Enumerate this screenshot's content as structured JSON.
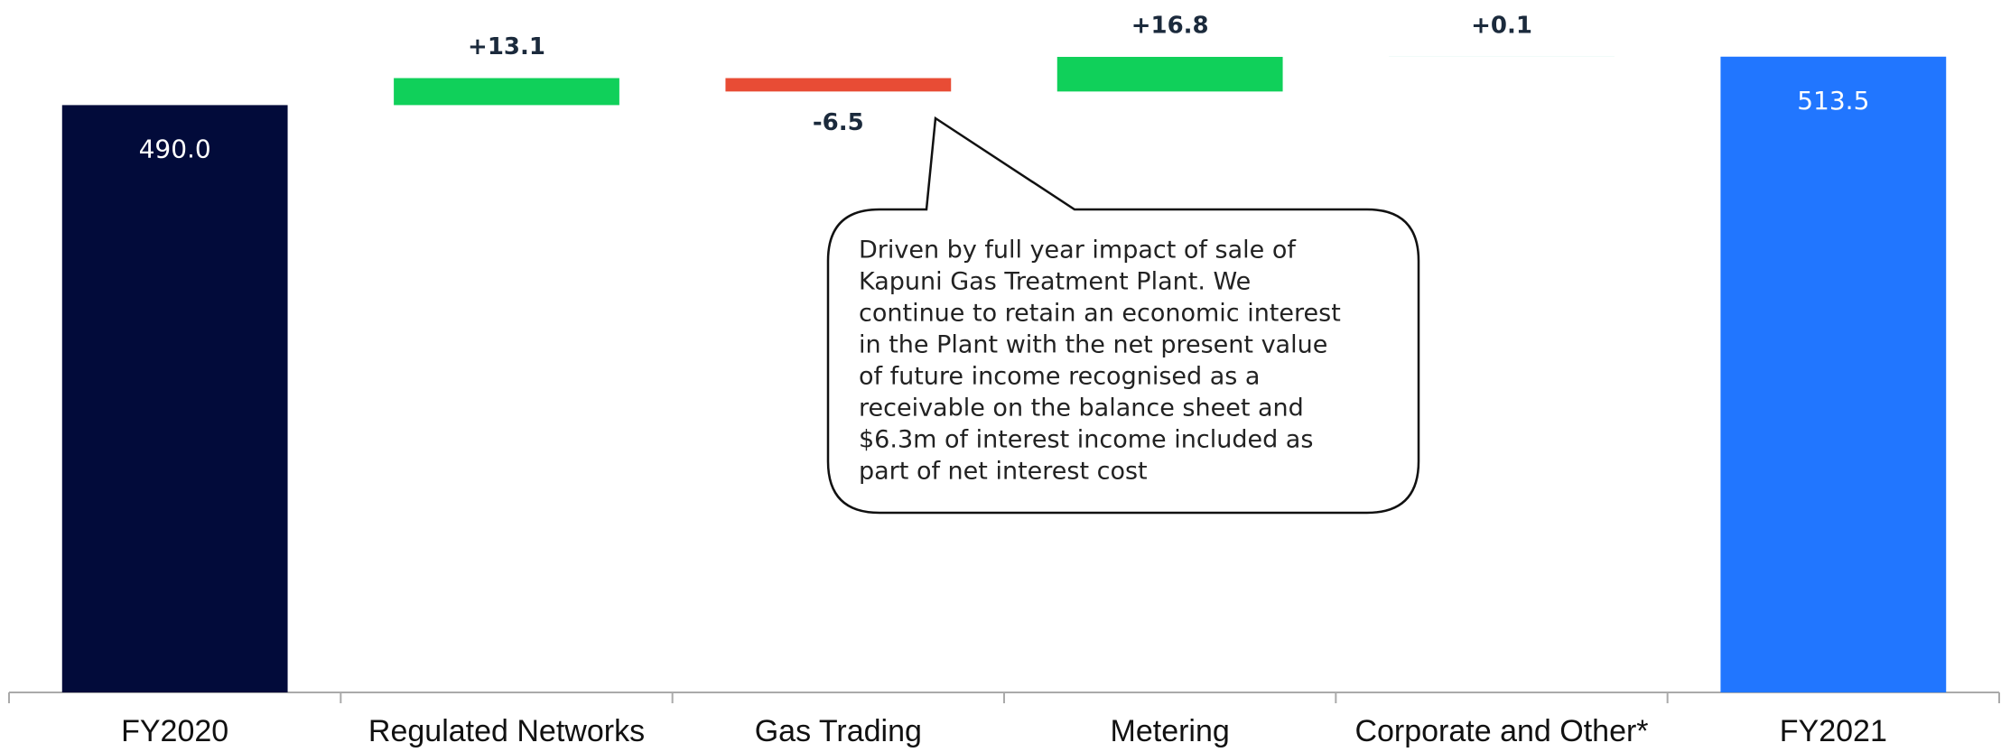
{
  "chart_data": {
    "type": "waterfall",
    "categories": [
      "FY2020",
      "Regulated Networks",
      "Gas Trading",
      "Metering",
      "Corporate and Other*",
      "FY2021"
    ],
    "values": [
      490.0,
      13.1,
      -6.5,
      16.8,
      0.1,
      513.5
    ],
    "value_labels": [
      "490.0",
      "+13.1",
      "-6.5",
      "+16.8",
      "+0.1",
      "513.5"
    ],
    "colors": [
      "#020b3a",
      "#10d05a",
      "#e84c35",
      "#10d05a",
      "#bfeee0",
      "#2176ff"
    ],
    "ylim": [
      205,
      541
    ],
    "annotation": [
      "Driven by full year impact of sale of",
      "Kapuni Gas Treatment Plant. We",
      "continue to retain an economic interest",
      "in the Plant with the net present value",
      "of future income recognised as a",
      "receivable on the balance sheet and",
      "$6.3m of interest income included as",
      "part of net interest cost"
    ]
  }
}
